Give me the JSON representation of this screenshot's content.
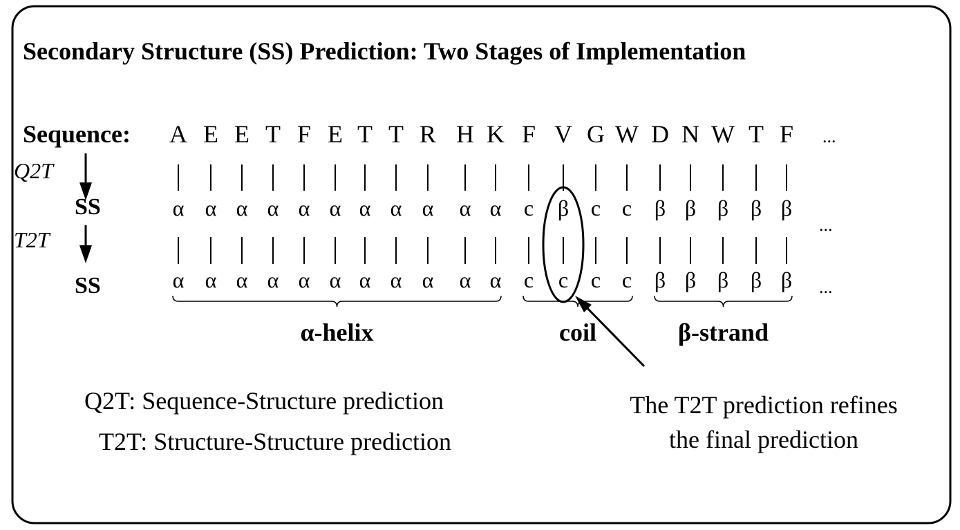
{
  "title": "Secondary Structure (SS) Prediction: Two Stages of Implementation",
  "sequence_label": "Sequence:",
  "residues": [
    "A",
    "E",
    "E",
    "T",
    "F",
    "E",
    "T",
    "T",
    "R",
    "H",
    "K",
    "F",
    "V",
    "G",
    "W",
    "D",
    "N",
    "W",
    "T",
    "F"
  ],
  "q2t_label": "Q2T",
  "t2t_label": "T2T",
  "ss_label": "SS",
  "stage1_ss": [
    "α",
    "α",
    "α",
    "α",
    "α",
    "α",
    "α",
    "α",
    "α",
    "α",
    "α",
    "c",
    "β",
    "c",
    "c",
    "β",
    "β",
    "β",
    "β",
    "β"
  ],
  "stage2_ss": [
    "α",
    "α",
    "α",
    "α",
    "α",
    "α",
    "α",
    "α",
    "α",
    "α",
    "α",
    "c",
    "c",
    "c",
    "c",
    "β",
    "β",
    "β",
    "β",
    "β"
  ],
  "ellipsis": "...",
  "regions": [
    {
      "label": "α-helix",
      "start": 0,
      "end": 10
    },
    {
      "label": "coil",
      "start": 11,
      "end": 14
    },
    {
      "label": "β-strand",
      "start": 15,
      "end": 19
    }
  ],
  "highlighted_index": 12,
  "legend": [
    "Q2T: Sequence-Structure prediction",
    "T2T: Structure-Structure prediction"
  ],
  "note": [
    "The T2T prediction refines",
    "the final prediction"
  ]
}
